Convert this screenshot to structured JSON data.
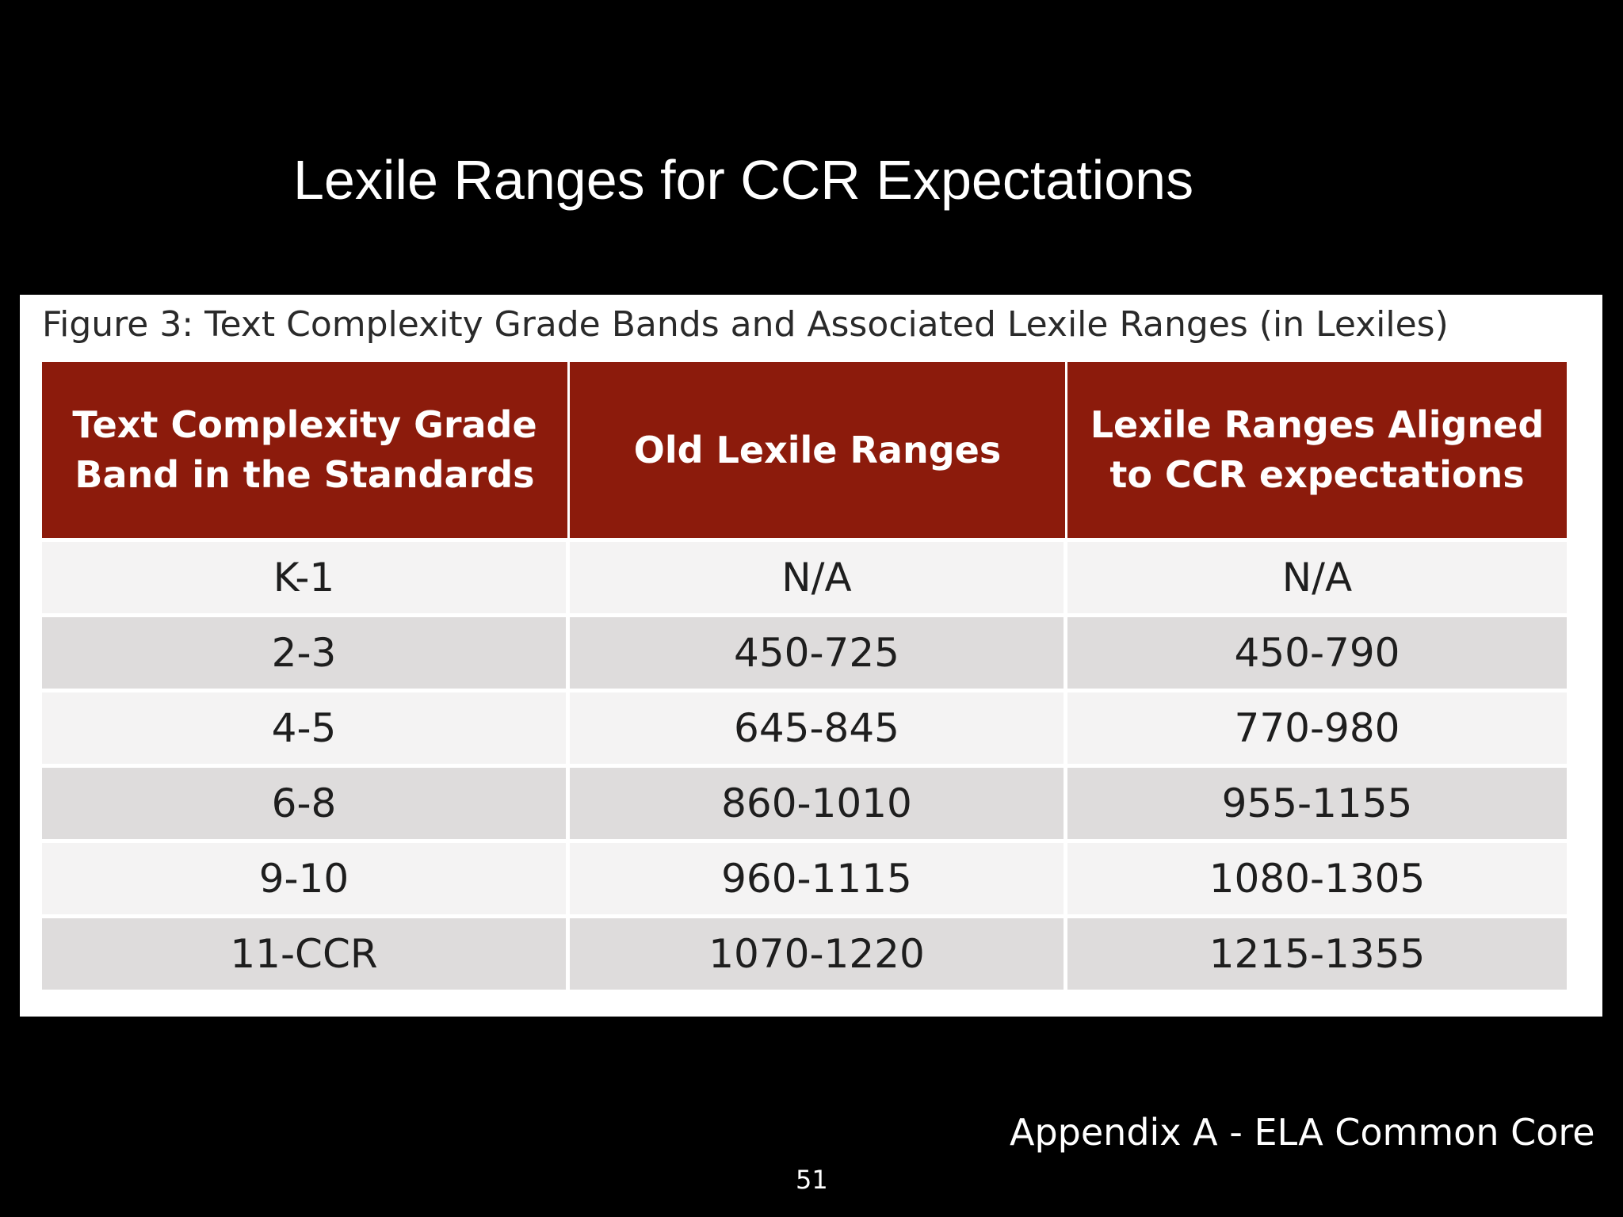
{
  "slide": {
    "title": "Lexile Ranges for CCR Expectations",
    "source_note": "Appendix A - ELA Common Core",
    "page_number": "51"
  },
  "figure": {
    "caption": "Figure 3: Text Complexity Grade Bands and Associated Lexile Ranges (in Lexiles)",
    "header_color": "#8c1b0c",
    "columns": [
      "Text Complexity Grade Band in the Standards",
      "Old Lexile Ranges",
      "Lexile Ranges Aligned to CCR expectations"
    ],
    "rows": [
      [
        "K-1",
        "N/A",
        "N/A"
      ],
      [
        "2-3",
        "450-725",
        "450-790"
      ],
      [
        "4-5",
        "645-845",
        "770-980"
      ],
      [
        "6-8",
        "860-1010",
        "955-1155"
      ],
      [
        "9-10",
        "960-1115",
        "1080-1305"
      ],
      [
        "11-CCR",
        "1070-1220",
        "1215-1355"
      ]
    ]
  }
}
